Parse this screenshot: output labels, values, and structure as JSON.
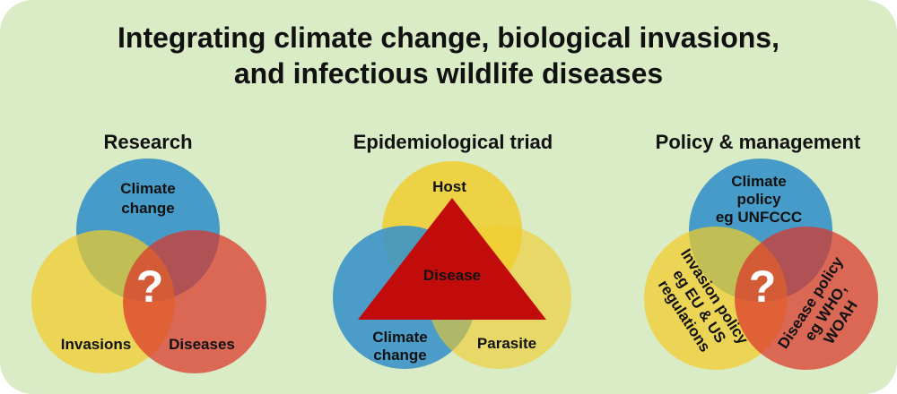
{
  "title": {
    "line1": "Integrating climate change, biological invasions,",
    "line2": "and infectious wildlife diseases"
  },
  "colors": {
    "background": "#d9ecc6",
    "blue": "#3b94c8",
    "yellow": "#f2cc2a",
    "red": "#d9352a",
    "triangle": "#c20c0c"
  },
  "research": {
    "heading": "Research",
    "climate": [
      "Climate",
      "change"
    ],
    "invasions": "Invasions",
    "diseases": "Diseases",
    "center": "?"
  },
  "triad": {
    "heading": "Epidemiological triad",
    "host": "Host",
    "disease": "Disease",
    "climate": [
      "Climate",
      "change"
    ],
    "parasite": "Parasite"
  },
  "policy": {
    "heading": "Policy & management",
    "climate": [
      "Climate",
      "policy",
      "eg UNFCCC"
    ],
    "invasion": [
      "Invasion policy",
      "eg EU & US",
      "regulations"
    ],
    "disease": [
      "Disease policy",
      "eg WHO,",
      "WOAH"
    ],
    "center": "?"
  }
}
